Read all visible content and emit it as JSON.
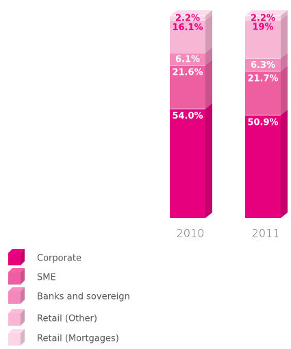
{
  "chart_data": {
    "type": "stacked-bar-3d",
    "categories": [
      "2010",
      "2011"
    ],
    "series": [
      {
        "name": "Corporate",
        "color": "#e6007e",
        "label_color": "#ffffff",
        "values": [
          54.0,
          50.9
        ],
        "value_labels": [
          "54.0%",
          "50.9%"
        ]
      },
      {
        "name": "SME",
        "color": "#ee5fa2",
        "label_color": "#ffffff",
        "values": [
          21.6,
          21.7
        ],
        "value_labels": [
          "21.6%",
          "21.7%"
        ]
      },
      {
        "name": "Banks and sovereign",
        "color": "#f28bbb",
        "label_color": "#ffffff",
        "values": [
          6.1,
          6.3
        ],
        "value_labels": [
          "6.1%",
          "6.3%"
        ]
      },
      {
        "name": "Retail (Other)",
        "color": "#f7b6d4",
        "label_color": "#e6007e",
        "values": [
          16.1,
          19
        ],
        "value_labels": [
          "16.1%",
          "19%"
        ]
      },
      {
        "name": "Retail (Mortgages)",
        "color": "#fbd4e6",
        "label_color": "#e6007e",
        "values": [
          2.2,
          2.2
        ],
        "value_labels": [
          "2.2%",
          "2.2%"
        ]
      }
    ]
  }
}
